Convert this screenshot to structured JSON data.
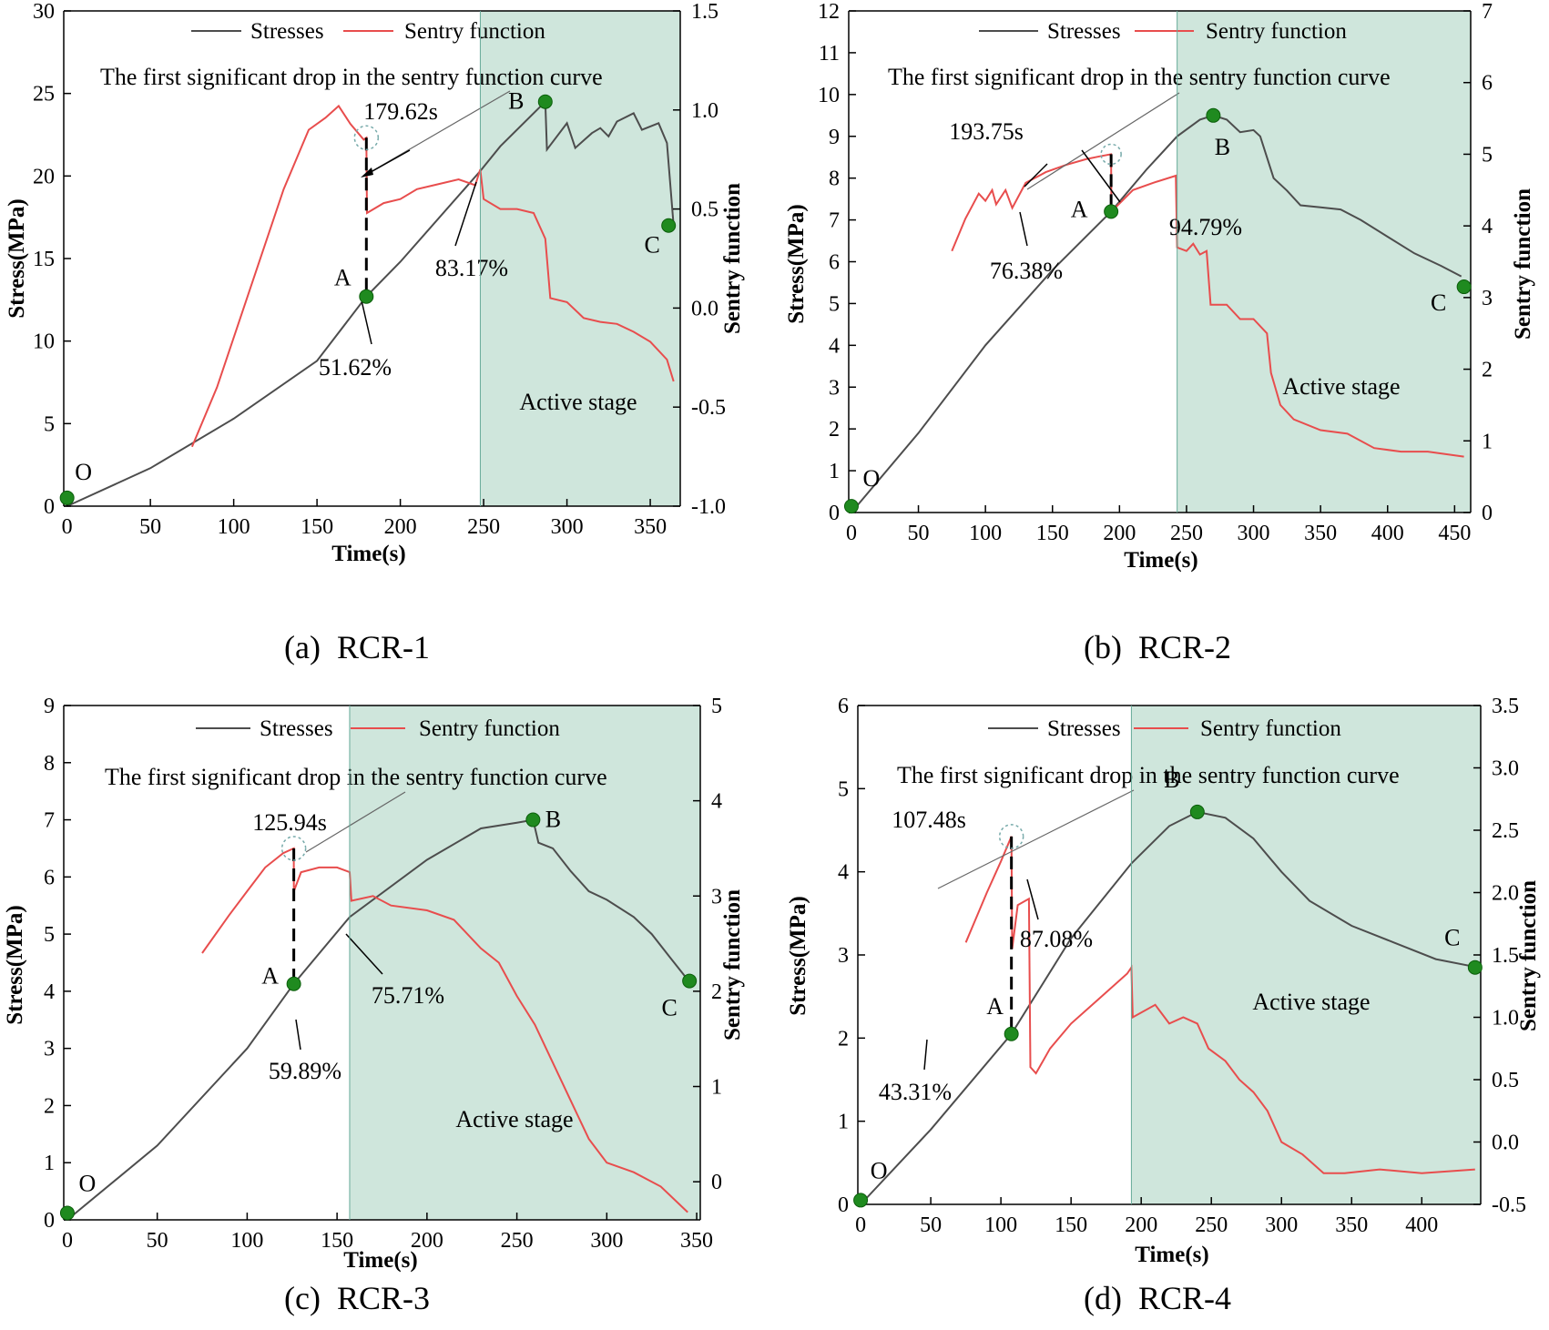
{
  "chart_data": [
    {
      "id": "a",
      "type": "line",
      "caption": "(a)  RCR-1",
      "xlabel": "Time(s)",
      "ylabel": "Stress(MPa)",
      "y2label": "Sentry function",
      "xlim": [
        -2,
        368
      ],
      "ylim": [
        0,
        30
      ],
      "y2lim": [
        -1,
        1.5
      ],
      "xticks": [
        0,
        50,
        100,
        150,
        200,
        250,
        300,
        350
      ],
      "yticks": [
        0,
        5,
        10,
        15,
        20,
        25,
        30
      ],
      "y2ticks": [
        -1.0,
        -0.5,
        0.0,
        0.5,
        1.0,
        1.5
      ],
      "x_tick_labels": [
        "0",
        "50",
        "100",
        "150",
        "200",
        "250",
        "300",
        "350"
      ],
      "y_tick_labels": [
        "0",
        "5",
        "10",
        "15",
        "20",
        "25",
        "30"
      ],
      "y2_tick_labels": [
        "-1.0",
        "-0.5",
        "0.0",
        "0.5",
        "1.0",
        "1.5"
      ],
      "legend": {
        "s1": "Stresses",
        "s2": "Sentry function"
      },
      "annotation": "The first significant drop in the sentry function curve",
      "drop_time": 179.62,
      "drop_time_label": "179.62s",
      "active_stage_label": "Active stage",
      "active_start": 248,
      "stress_series": [
        [
          0,
          0
        ],
        [
          50,
          2.3
        ],
        [
          100,
          5.3
        ],
        [
          150,
          8.8
        ],
        [
          179.62,
          12.7
        ],
        [
          200,
          14.8
        ],
        [
          248,
          20.3
        ],
        [
          260,
          21.8
        ],
        [
          287,
          24.5
        ],
        [
          288,
          21.6
        ],
        [
          300,
          23.2
        ],
        [
          305,
          21.7
        ],
        [
          315,
          22.6
        ],
        [
          320,
          22.9
        ],
        [
          325,
          22.4
        ],
        [
          330,
          23.3
        ],
        [
          340,
          23.8
        ],
        [
          345,
          22.8
        ],
        [
          355,
          23.2
        ],
        [
          360,
          22.0
        ],
        [
          364,
          17.0
        ]
      ],
      "sentry_series": [
        [
          75,
          -0.7
        ],
        [
          90,
          -0.4
        ],
        [
          110,
          0.1
        ],
        [
          130,
          0.6
        ],
        [
          145,
          0.9
        ],
        [
          155,
          0.96
        ],
        [
          163,
          1.02
        ],
        [
          170,
          0.93
        ],
        [
          178,
          0.85
        ],
        [
          179.62,
          0.86
        ],
        [
          180,
          0.48
        ],
        [
          190,
          0.53
        ],
        [
          200,
          0.55
        ],
        [
          210,
          0.6
        ],
        [
          220,
          0.62
        ],
        [
          235,
          0.65
        ],
        [
          245,
          0.62
        ],
        [
          248,
          0.7
        ],
        [
          250,
          0.55
        ],
        [
          260,
          0.5
        ],
        [
          270,
          0.5
        ],
        [
          280,
          0.48
        ],
        [
          287,
          0.35
        ],
        [
          290,
          0.05
        ],
        [
          300,
          0.03
        ],
        [
          310,
          -0.05
        ],
        [
          320,
          -0.07
        ],
        [
          330,
          -0.08
        ],
        [
          340,
          -0.12
        ],
        [
          350,
          -0.17
        ],
        [
          360,
          -0.26
        ],
        [
          364,
          -0.37
        ]
      ],
      "points": [
        {
          "label": "O",
          "t": 0,
          "s": 0.5
        },
        {
          "label": "A",
          "t": 179.62,
          "s": 12.7
        },
        {
          "label": "B",
          "t": 287,
          "s": 24.5
        },
        {
          "label": "C",
          "t": 361,
          "s": 17.0
        }
      ],
      "percent_labels": [
        "51.62%",
        "83.17%"
      ]
    },
    {
      "id": "b",
      "type": "line",
      "caption": "(b)  RCR-2",
      "xlabel": "Time(s)",
      "ylabel": "Stress(MPa)",
      "y2label": "Sentry function",
      "xlim": [
        -2,
        462
      ],
      "ylim": [
        0,
        12
      ],
      "y2lim": [
        0,
        7
      ],
      "xticks": [
        0,
        50,
        100,
        150,
        200,
        250,
        300,
        350,
        400,
        450
      ],
      "yticks": [
        0,
        1,
        2,
        3,
        4,
        5,
        6,
        7,
        8,
        9,
        10,
        11,
        12
      ],
      "y2ticks": [
        0,
        1,
        2,
        3,
        4,
        5,
        6,
        7
      ],
      "x_tick_labels": [
        "0",
        "50",
        "100",
        "150",
        "200",
        "250",
        "300",
        "350",
        "400",
        "450"
      ],
      "y_tick_labels": [
        "0",
        "1",
        "2",
        "3",
        "4",
        "5",
        "6",
        "7",
        "8",
        "9",
        "10",
        "11",
        "12"
      ],
      "y2_tick_labels": [
        "0",
        "1",
        "2",
        "3",
        "4",
        "5",
        "6",
        "7"
      ],
      "legend": {
        "s1": "Stresses",
        "s2": "Sentry function"
      },
      "annotation": "The first significant drop in the sentry function curve",
      "drop_time": 193.75,
      "drop_time_label": "193.75s",
      "active_stage_label": "Active stage",
      "active_start": 243,
      "stress_series": [
        [
          0,
          0
        ],
        [
          50,
          1.9
        ],
        [
          100,
          4.0
        ],
        [
          150,
          5.8
        ],
        [
          193.75,
          7.2
        ],
        [
          220,
          8.2
        ],
        [
          243,
          9.0
        ],
        [
          260,
          9.4
        ],
        [
          270,
          9.5
        ],
        [
          280,
          9.4
        ],
        [
          290,
          9.1
        ],
        [
          300,
          9.15
        ],
        [
          305,
          9.0
        ],
        [
          315,
          8.0
        ],
        [
          325,
          7.7
        ],
        [
          335,
          7.35
        ],
        [
          350,
          7.3
        ],
        [
          365,
          7.25
        ],
        [
          380,
          7.0
        ],
        [
          400,
          6.6
        ],
        [
          420,
          6.2
        ],
        [
          440,
          5.9
        ],
        [
          455,
          5.65
        ]
      ],
      "sentry_series": [
        [
          75,
          3.65
        ],
        [
          85,
          4.1
        ],
        [
          95,
          4.45
        ],
        [
          100,
          4.35
        ],
        [
          105,
          4.5
        ],
        [
          108,
          4.3
        ],
        [
          115,
          4.5
        ],
        [
          120,
          4.25
        ],
        [
          130,
          4.6
        ],
        [
          145,
          4.75
        ],
        [
          160,
          4.85
        ],
        [
          175,
          4.93
        ],
        [
          185,
          4.97
        ],
        [
          193.75,
          5.0
        ],
        [
          194,
          4.2
        ],
        [
          210,
          4.5
        ],
        [
          225,
          4.6
        ],
        [
          242,
          4.7
        ],
        [
          243,
          3.7
        ],
        [
          250,
          3.65
        ],
        [
          255,
          3.75
        ],
        [
          260,
          3.6
        ],
        [
          265,
          3.65
        ],
        [
          268,
          2.9
        ],
        [
          280,
          2.9
        ],
        [
          290,
          2.7
        ],
        [
          300,
          2.7
        ],
        [
          310,
          2.5
        ],
        [
          313,
          1.95
        ],
        [
          320,
          1.5
        ],
        [
          330,
          1.3
        ],
        [
          350,
          1.15
        ],
        [
          370,
          1.1
        ],
        [
          390,
          0.9
        ],
        [
          410,
          0.85
        ],
        [
          430,
          0.85
        ],
        [
          457,
          0.78
        ]
      ],
      "points": [
        {
          "label": "O",
          "t": 0,
          "s": 0.15
        },
        {
          "label": "A",
          "t": 193.75,
          "s": 7.2
        },
        {
          "label": "B",
          "t": 270,
          "s": 9.5
        },
        {
          "label": "C",
          "t": 457,
          "s": 5.4
        }
      ],
      "percent_labels": [
        "76.38%",
        "94.79%"
      ]
    },
    {
      "id": "c",
      "type": "line",
      "caption": "(c)  RCR-3",
      "xlabel": "Time(s)",
      "ylabel": "Stress(MPa)",
      "y2label": "Sentry function",
      "xlim": [
        -2,
        352
      ],
      "ylim": [
        0,
        9
      ],
      "y2lim": [
        -0.4,
        5
      ],
      "xticks": [
        0,
        50,
        100,
        150,
        200,
        250,
        300,
        350
      ],
      "yticks": [
        0,
        1,
        2,
        3,
        4,
        5,
        6,
        7,
        8,
        9
      ],
      "y2ticks": [
        0,
        1,
        2,
        3,
        4,
        5
      ],
      "x_tick_labels": [
        "0",
        "50",
        "100",
        "150",
        "200",
        "250",
        "300",
        "350"
      ],
      "y_tick_labels": [
        "0",
        "1",
        "2",
        "3",
        "4",
        "5",
        "6",
        "7",
        "8",
        "9"
      ],
      "y2_tick_labels": [
        "0",
        "1",
        "2",
        "3",
        "4",
        "5"
      ],
      "legend": {
        "s1": "Stresses",
        "s2": "Sentry function"
      },
      "annotation": "The first significant drop in the sentry function curve",
      "drop_time": 125.94,
      "drop_time_label": "125.94s",
      "active_stage_label": "Active stage",
      "active_start": 157,
      "stress_series": [
        [
          0,
          0
        ],
        [
          50,
          1.3
        ],
        [
          100,
          3.0
        ],
        [
          125.94,
          4.13
        ],
        [
          157,
          5.3
        ],
        [
          200,
          6.3
        ],
        [
          230,
          6.85
        ],
        [
          250,
          6.95
        ],
        [
          259,
          7.0
        ],
        [
          262,
          6.6
        ],
        [
          270,
          6.5
        ],
        [
          280,
          6.1
        ],
        [
          290,
          5.75
        ],
        [
          300,
          5.6
        ],
        [
          315,
          5.3
        ],
        [
          325,
          5.0
        ],
        [
          335,
          4.6
        ],
        [
          345,
          4.2
        ]
      ],
      "sentry_series": [
        [
          75,
          2.4
        ],
        [
          90,
          2.8
        ],
        [
          100,
          3.05
        ],
        [
          110,
          3.3
        ],
        [
          120,
          3.45
        ],
        [
          125.94,
          3.5
        ],
        [
          126,
          3.05
        ],
        [
          130,
          3.25
        ],
        [
          140,
          3.3
        ],
        [
          150,
          3.3
        ],
        [
          157,
          3.25
        ],
        [
          158,
          2.95
        ],
        [
          170,
          3.0
        ],
        [
          180,
          2.9
        ],
        [
          200,
          2.85
        ],
        [
          215,
          2.75
        ],
        [
          225,
          2.55
        ],
        [
          230,
          2.45
        ],
        [
          240,
          2.3
        ],
        [
          250,
          1.95
        ],
        [
          260,
          1.65
        ],
        [
          270,
          1.25
        ],
        [
          280,
          0.85
        ],
        [
          290,
          0.45
        ],
        [
          300,
          0.2
        ],
        [
          315,
          0.1
        ],
        [
          330,
          -0.05
        ],
        [
          345,
          -0.32
        ]
      ],
      "points": [
        {
          "label": "O",
          "t": 0,
          "s": 0.12
        },
        {
          "label": "A",
          "t": 125.94,
          "s": 4.13
        },
        {
          "label": "B",
          "t": 259,
          "s": 7.0
        },
        {
          "label": "C",
          "t": 346,
          "s": 4.18
        }
      ],
      "percent_labels": [
        "59.89%",
        "75.71%"
      ]
    },
    {
      "id": "d",
      "type": "line",
      "caption": "(d)  RCR-4",
      "xlabel": "Time(s)",
      "ylabel": "Stress(MPa)",
      "y2label": "Sentry function",
      "xlim": [
        -2,
        442
      ],
      "ylim": [
        0,
        6
      ],
      "y2lim": [
        -0.5,
        3.5
      ],
      "xticks": [
        0,
        50,
        100,
        150,
        200,
        250,
        300,
        350,
        400
      ],
      "yticks": [
        0,
        1,
        2,
        3,
        4,
        5,
        6
      ],
      "y2ticks": [
        -0.5,
        0.0,
        0.5,
        1.0,
        1.5,
        2.0,
        2.5,
        3.0,
        3.5
      ],
      "x_tick_labels": [
        "0",
        "50",
        "100",
        "150",
        "200",
        "250",
        "300",
        "350",
        "400"
      ],
      "y_tick_labels": [
        "0",
        "1",
        "2",
        "3",
        "4",
        "5",
        "6"
      ],
      "y2_tick_labels": [
        "-0.5",
        "0.0",
        "0.5",
        "1.0",
        "1.5",
        "2.0",
        "2.5",
        "3.0",
        "3.5"
      ],
      "legend": {
        "s1": "Stresses",
        "s2": "Sentry function"
      },
      "annotation": "The first significant drop in the sentry function curve",
      "drop_time": 107.48,
      "drop_time_label": "107.48s",
      "active_stage_label": "Active stage",
      "active_start": 193,
      "stress_series": [
        [
          0,
          0
        ],
        [
          50,
          0.9
        ],
        [
          107.48,
          2.05
        ],
        [
          150,
          3.2
        ],
        [
          193,
          4.1
        ],
        [
          220,
          4.55
        ],
        [
          240,
          4.72
        ],
        [
          260,
          4.65
        ],
        [
          280,
          4.4
        ],
        [
          300,
          4.0
        ],
        [
          320,
          3.65
        ],
        [
          350,
          3.35
        ],
        [
          380,
          3.15
        ],
        [
          410,
          2.95
        ],
        [
          440,
          2.85
        ]
      ],
      "sentry_series": [
        [
          75,
          1.6
        ],
        [
          90,
          2.0
        ],
        [
          100,
          2.25
        ],
        [
          107.48,
          2.45
        ],
        [
          108,
          1.55
        ],
        [
          112,
          1.9
        ],
        [
          120,
          1.95
        ],
        [
          121,
          0.6
        ],
        [
          125,
          0.55
        ],
        [
          135,
          0.75
        ],
        [
          150,
          0.95
        ],
        [
          170,
          1.15
        ],
        [
          190,
          1.35
        ],
        [
          193,
          1.4
        ],
        [
          194,
          1.0
        ],
        [
          210,
          1.1
        ],
        [
          220,
          0.95
        ],
        [
          230,
          1.0
        ],
        [
          240,
          0.95
        ],
        [
          248,
          0.75
        ],
        [
          260,
          0.65
        ],
        [
          270,
          0.5
        ],
        [
          280,
          0.4
        ],
        [
          290,
          0.25
        ],
        [
          300,
          0.0
        ],
        [
          315,
          -0.1
        ],
        [
          330,
          -0.25
        ],
        [
          345,
          -0.25
        ],
        [
          370,
          -0.22
        ],
        [
          400,
          -0.25
        ],
        [
          438,
          -0.22
        ]
      ],
      "points": [
        {
          "label": "O",
          "t": 0,
          "s": 0.05
        },
        {
          "label": "A",
          "t": 107.48,
          "s": 2.05
        },
        {
          "label": "B",
          "t": 240,
          "s": 4.72
        },
        {
          "label": "C",
          "t": 438,
          "s": 2.85
        }
      ],
      "percent_labels": [
        "43.31%",
        "87.08%"
      ]
    }
  ]
}
